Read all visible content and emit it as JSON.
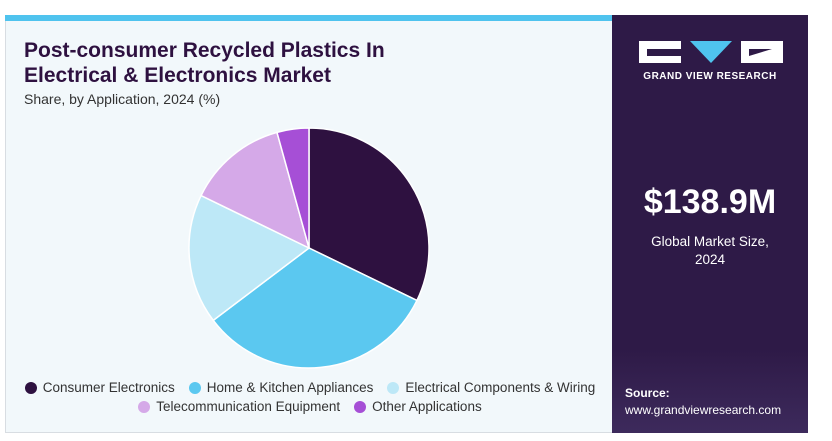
{
  "chart_data": {
    "type": "pie",
    "title": "Post-consumer Recycled Plastics In Electrical & Electronics Market",
    "subtitle": "Share, by Application, 2024 (%)",
    "categories": [
      "Consumer Electronics",
      "Home & Kitchen Appliances",
      "Electrical Components & Wiring",
      "Telecommunication Equipment",
      "Other Applications"
    ],
    "values": [
      32.2,
      32.5,
      17.5,
      13.5,
      4.3
    ],
    "colors": [
      "#2e1140",
      "#5bc8f0",
      "#bde8f7",
      "#d5a9e8",
      "#a64fd6"
    ]
  },
  "panel": {
    "brand": "GRAND VIEW RESEARCH",
    "market_size": "$138.9M",
    "market_size_label": "Global Market Size, 2024",
    "source_label": "Source:",
    "source_url": "www.grandviewresearch.com"
  }
}
